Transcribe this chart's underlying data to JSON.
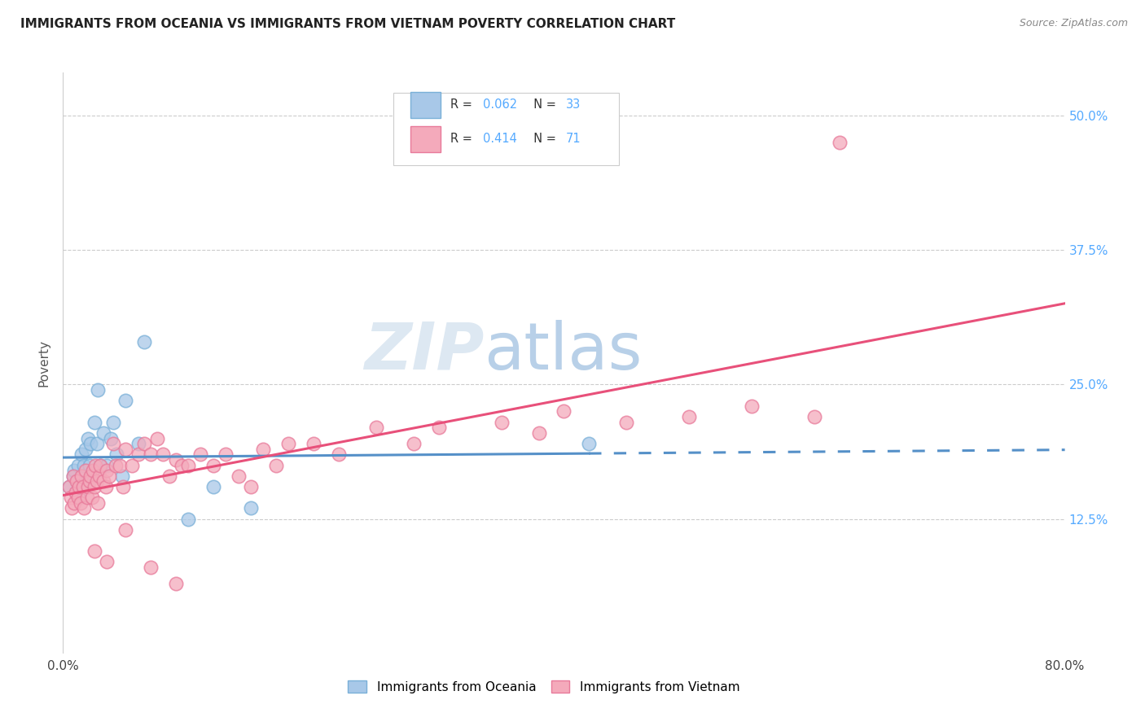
{
  "title": "IMMIGRANTS FROM OCEANIA VS IMMIGRANTS FROM VIETNAM POVERTY CORRELATION CHART",
  "source": "Source: ZipAtlas.com",
  "ylabel": "Poverty",
  "ytick_labels": [
    "12.5%",
    "25.0%",
    "37.5%",
    "50.0%"
  ],
  "ytick_values": [
    0.125,
    0.25,
    0.375,
    0.5
  ],
  "xlim": [
    0.0,
    0.8
  ],
  "ylim": [
    0.0,
    0.54
  ],
  "legend_r_oceania": "0.062",
  "legend_n_oceania": "33",
  "legend_r_vietnam": "0.414",
  "legend_n_vietnam": "71",
  "color_oceania_fill": "#a8c8e8",
  "color_oceania_edge": "#7ab0d8",
  "color_vietnam_fill": "#f4aabb",
  "color_vietnam_edge": "#e87a9a",
  "color_line_oceania": "#5590c8",
  "color_line_vietnam": "#e8507a",
  "watermark_zip": "ZIP",
  "watermark_atlas": "atlas",
  "oceania_x": [
    0.005,
    0.008,
    0.009,
    0.01,
    0.011,
    0.012,
    0.013,
    0.014,
    0.015,
    0.016,
    0.017,
    0.018,
    0.019,
    0.02,
    0.021,
    0.022,
    0.025,
    0.027,
    0.028,
    0.03,
    0.032,
    0.035,
    0.038,
    0.04,
    0.043,
    0.047,
    0.05,
    0.06,
    0.065,
    0.1,
    0.12,
    0.15,
    0.42
  ],
  "oceania_y": [
    0.155,
    0.165,
    0.17,
    0.15,
    0.16,
    0.175,
    0.145,
    0.155,
    0.185,
    0.165,
    0.175,
    0.19,
    0.16,
    0.2,
    0.175,
    0.195,
    0.215,
    0.195,
    0.245,
    0.175,
    0.205,
    0.175,
    0.2,
    0.215,
    0.185,
    0.165,
    0.235,
    0.195,
    0.29,
    0.125,
    0.155,
    0.135,
    0.195
  ],
  "vietnam_x": [
    0.005,
    0.006,
    0.007,
    0.008,
    0.009,
    0.01,
    0.011,
    0.012,
    0.013,
    0.014,
    0.015,
    0.016,
    0.017,
    0.018,
    0.019,
    0.02,
    0.021,
    0.022,
    0.023,
    0.024,
    0.025,
    0.026,
    0.027,
    0.028,
    0.029,
    0.03,
    0.032,
    0.034,
    0.035,
    0.037,
    0.04,
    0.042,
    0.045,
    0.048,
    0.05,
    0.055,
    0.06,
    0.065,
    0.07,
    0.075,
    0.08,
    0.085,
    0.09,
    0.095,
    0.1,
    0.11,
    0.12,
    0.13,
    0.14,
    0.15,
    0.16,
    0.17,
    0.18,
    0.2,
    0.22,
    0.25,
    0.28,
    0.3,
    0.35,
    0.38,
    0.4,
    0.45,
    0.5,
    0.55,
    0.6,
    0.025,
    0.035,
    0.05,
    0.07,
    0.09,
    0.62
  ],
  "vietnam_y": [
    0.155,
    0.145,
    0.135,
    0.165,
    0.14,
    0.15,
    0.16,
    0.145,
    0.155,
    0.14,
    0.165,
    0.155,
    0.135,
    0.17,
    0.145,
    0.155,
    0.16,
    0.165,
    0.145,
    0.17,
    0.155,
    0.175,
    0.16,
    0.14,
    0.165,
    0.175,
    0.16,
    0.155,
    0.17,
    0.165,
    0.195,
    0.175,
    0.175,
    0.155,
    0.19,
    0.175,
    0.185,
    0.195,
    0.185,
    0.2,
    0.185,
    0.165,
    0.18,
    0.175,
    0.175,
    0.185,
    0.175,
    0.185,
    0.165,
    0.155,
    0.19,
    0.175,
    0.195,
    0.195,
    0.185,
    0.21,
    0.195,
    0.21,
    0.215,
    0.205,
    0.225,
    0.215,
    0.22,
    0.23,
    0.22,
    0.095,
    0.085,
    0.115,
    0.08,
    0.065,
    0.475
  ]
}
